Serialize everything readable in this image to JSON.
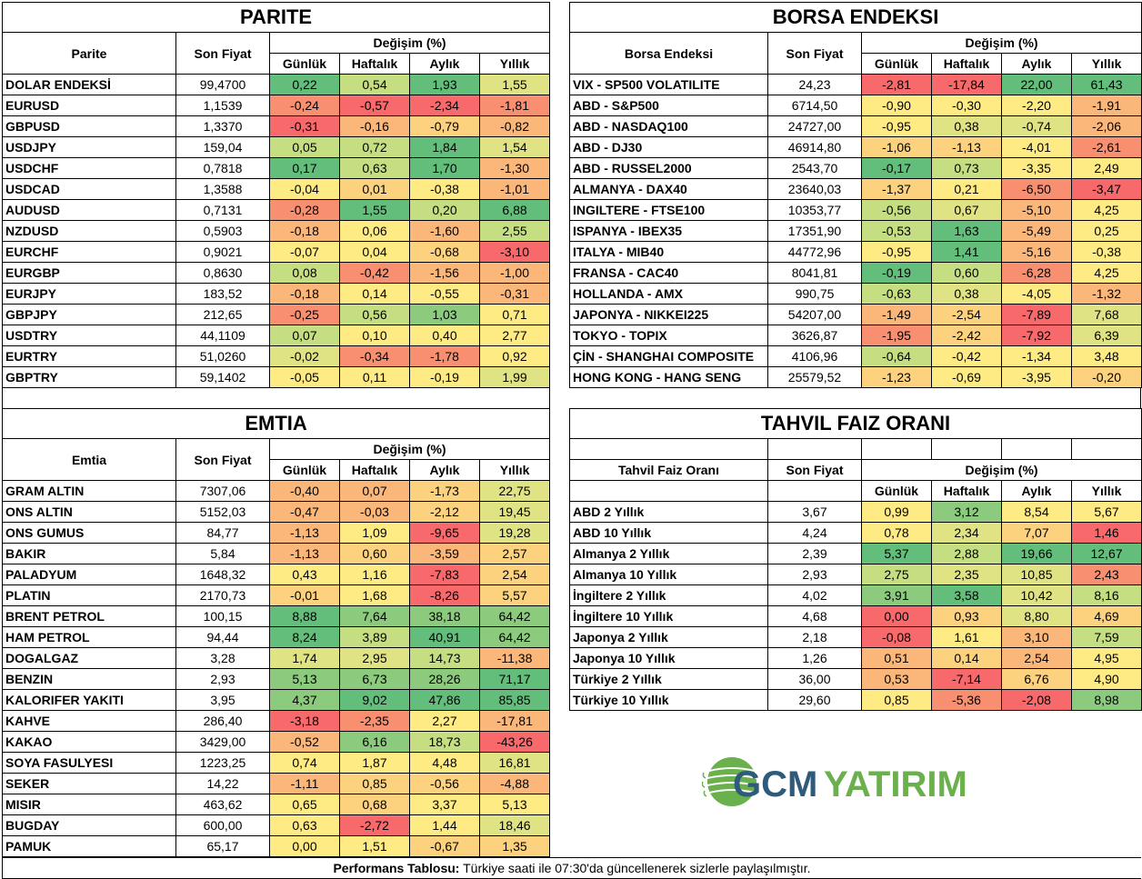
{
  "colors": {
    "green_strong": "#63BE7B",
    "green": "#8CCB7E",
    "green_light": "#C5DE82",
    "yellow_green": "#E0E383",
    "yellow": "#FFEB84",
    "orange_light": "#FCD27F",
    "orange": "#FBB77A",
    "orange_red": "#F98F71",
    "red": "#F8696B",
    "logo_blue": "#2E5B7C",
    "logo_green": "#6AB04C"
  },
  "headers": {
    "son_fiyat": "Son Fiyat",
    "degisim": "Değişim (%)",
    "gunluk": "Günlük",
    "haftalik": "Haftalık",
    "aylik": "Aylık",
    "yillik": "Yıllık"
  },
  "parite": {
    "title": "PARITE",
    "col_label": "Parite",
    "rows": [
      {
        "name": "DOLAR ENDEKSİ",
        "price": "99,4700",
        "vals": [
          "0,22",
          "0,54",
          "1,93",
          "1,55"
        ],
        "c": [
          "#63BE7B",
          "#C5DE82",
          "#63BE7B",
          "#E0E383"
        ]
      },
      {
        "name": "EURUSD",
        "price": "1,1539",
        "vals": [
          "-0,24",
          "-0,57",
          "-2,34",
          "-1,81"
        ],
        "c": [
          "#F98F71",
          "#F8696B",
          "#F8696B",
          "#F98F71"
        ]
      },
      {
        "name": "GBPUSD",
        "price": "1,3370",
        "vals": [
          "-0,31",
          "-0,16",
          "-0,79",
          "-0,82"
        ],
        "c": [
          "#F8696B",
          "#FBB77A",
          "#FCD27F",
          "#FBB77A"
        ]
      },
      {
        "name": "USDJPY",
        "price": "159,04",
        "vals": [
          "0,05",
          "0,72",
          "1,84",
          "1,54"
        ],
        "c": [
          "#C5DE82",
          "#C5DE82",
          "#63BE7B",
          "#E0E383"
        ]
      },
      {
        "name": "USDCHF",
        "price": "0,7818",
        "vals": [
          "0,17",
          "0,63",
          "1,70",
          "-1,30"
        ],
        "c": [
          "#63BE7B",
          "#C5DE82",
          "#63BE7B",
          "#FBB77A"
        ]
      },
      {
        "name": "USDCAD",
        "price": "1,3588",
        "vals": [
          "-0,04",
          "0,01",
          "-0,38",
          "-1,01"
        ],
        "c": [
          "#FFEB84",
          "#FCD27F",
          "#FFEB84",
          "#FBB77A"
        ]
      },
      {
        "name": "AUDUSD",
        "price": "0,7131",
        "vals": [
          "-0,28",
          "1,55",
          "0,20",
          "6,88"
        ],
        "c": [
          "#F98F71",
          "#63BE7B",
          "#C5DE82",
          "#63BE7B"
        ]
      },
      {
        "name": "NZDUSD",
        "price": "0,5903",
        "vals": [
          "-0,18",
          "0,06",
          "-1,60",
          "2,55"
        ],
        "c": [
          "#FBB77A",
          "#FFEB84",
          "#FBB77A",
          "#C5DE82"
        ]
      },
      {
        "name": "EURCHF",
        "price": "0,9021",
        "vals": [
          "-0,07",
          "0,04",
          "-0,68",
          "-3,10"
        ],
        "c": [
          "#FFEB84",
          "#FFEB84",
          "#FCD27F",
          "#F8696B"
        ]
      },
      {
        "name": "EURGBP",
        "price": "0,8630",
        "vals": [
          "0,08",
          "-0,42",
          "-1,56",
          "-1,00"
        ],
        "c": [
          "#C5DE82",
          "#F98F71",
          "#FBB77A",
          "#FBB77A"
        ]
      },
      {
        "name": "EURJPY",
        "price": "183,52",
        "vals": [
          "-0,18",
          "0,14",
          "-0,55",
          "-0,31"
        ],
        "c": [
          "#FBB77A",
          "#FFEB84",
          "#FFEB84",
          "#FBB77A"
        ]
      },
      {
        "name": "GBPJPY",
        "price": "212,65",
        "vals": [
          "-0,25",
          "0,56",
          "1,03",
          "0,71"
        ],
        "c": [
          "#F98F71",
          "#C5DE82",
          "#8CCB7E",
          "#FFEB84"
        ]
      },
      {
        "name": "USDTRY",
        "price": "44,1109",
        "vals": [
          "0,07",
          "0,10",
          "0,40",
          "2,77"
        ],
        "c": [
          "#C5DE82",
          "#FFEB84",
          "#FFEB84",
          "#FFEB84"
        ]
      },
      {
        "name": "EURTRY",
        "price": "51,0260",
        "vals": [
          "-0,02",
          "-0,34",
          "-1,78",
          "0,92"
        ],
        "c": [
          "#E0E383",
          "#F98F71",
          "#F98F71",
          "#FFEB84"
        ]
      },
      {
        "name": "GBPTRY",
        "price": "59,1402",
        "vals": [
          "-0,05",
          "0,11",
          "-0,19",
          "1,99"
        ],
        "c": [
          "#FFEB84",
          "#FFEB84",
          "#FFEB84",
          "#E0E383"
        ]
      }
    ]
  },
  "borsa": {
    "title": "BORSA ENDEKSI",
    "col_label": "Borsa Endeksi",
    "rows": [
      {
        "name": "VIX  - SP500 VOLATILITE",
        "price": "24,23",
        "vals": [
          "-2,81",
          "-17,84",
          "22,00",
          "61,43"
        ],
        "c": [
          "#F8696B",
          "#F8696B",
          "#63BE7B",
          "#63BE7B"
        ]
      },
      {
        "name": "ABD - S&P500",
        "price": "6714,50",
        "vals": [
          "-0,90",
          "-0,30",
          "-2,20",
          "-1,91"
        ],
        "c": [
          "#FFEB84",
          "#FFEB84",
          "#FFEB84",
          "#FBB77A"
        ]
      },
      {
        "name": "ABD - NASDAQ100",
        "price": "24727,00",
        "vals": [
          "-0,95",
          "0,38",
          "-0,74",
          "-2,06"
        ],
        "c": [
          "#FFEB84",
          "#E0E383",
          "#E0E383",
          "#FBB77A"
        ]
      },
      {
        "name": "ABD - DJ30",
        "price": "46914,80",
        "vals": [
          "-1,06",
          "-1,13",
          "-4,01",
          "-2,61"
        ],
        "c": [
          "#FCD27F",
          "#FCD27F",
          "#FFEB84",
          "#F98F71"
        ]
      },
      {
        "name": "ABD - RUSSEL2000",
        "price": "2543,70",
        "vals": [
          "-0,17",
          "0,73",
          "-3,35",
          "2,49"
        ],
        "c": [
          "#63BE7B",
          "#C5DE82",
          "#FFEB84",
          "#FFEB84"
        ]
      },
      {
        "name": "ALMANYA - DAX40",
        "price": "23640,03",
        "vals": [
          "-1,37",
          "0,21",
          "-6,50",
          "-3,47"
        ],
        "c": [
          "#FCD27F",
          "#FFEB84",
          "#F98F71",
          "#F8696B"
        ]
      },
      {
        "name": "INGILTERE - FTSE100",
        "price": "10353,77",
        "vals": [
          "-0,56",
          "0,67",
          "-5,10",
          "4,25"
        ],
        "c": [
          "#C5DE82",
          "#E0E383",
          "#FBB77A",
          "#FFEB84"
        ]
      },
      {
        "name": "ISPANYA - IBEX35",
        "price": "17351,90",
        "vals": [
          "-0,53",
          "1,63",
          "-5,49",
          "0,25"
        ],
        "c": [
          "#C5DE82",
          "#63BE7B",
          "#FBB77A",
          "#FFEB84"
        ]
      },
      {
        "name": "ITALYA - MIB40",
        "price": "44772,96",
        "vals": [
          "-0,95",
          "1,41",
          "-5,16",
          "-0,38"
        ],
        "c": [
          "#FFEB84",
          "#63BE7B",
          "#FBB77A",
          "#FFEB84"
        ]
      },
      {
        "name": "FRANSA - CAC40",
        "price": "8041,81",
        "vals": [
          "-0,19",
          "0,60",
          "-6,28",
          "4,25"
        ],
        "c": [
          "#63BE7B",
          "#C5DE82",
          "#F98F71",
          "#FFEB84"
        ]
      },
      {
        "name": "HOLLANDA - AMX",
        "price": "990,75",
        "vals": [
          "-0,63",
          "0,38",
          "-4,05",
          "-1,32"
        ],
        "c": [
          "#C5DE82",
          "#E0E383",
          "#FFEB84",
          "#FBB77A"
        ]
      },
      {
        "name": "JAPONYA - NIKKEI225",
        "price": "54207,00",
        "vals": [
          "-1,49",
          "-2,54",
          "-7,89",
          "7,68"
        ],
        "c": [
          "#FBB77A",
          "#FCD27F",
          "#F8696B",
          "#E0E383"
        ]
      },
      {
        "name": "TOKYO - TOPIX",
        "price": "3626,87",
        "vals": [
          "-1,95",
          "-2,42",
          "-7,92",
          "6,39"
        ],
        "c": [
          "#F98F71",
          "#FCD27F",
          "#F8696B",
          "#E0E383"
        ]
      },
      {
        "name": "ÇİN - SHANGHAI COMPOSITE",
        "price": "4106,96",
        "vals": [
          "-0,64",
          "-0,42",
          "-1,34",
          "3,48"
        ],
        "c": [
          "#C5DE82",
          "#FFEB84",
          "#FFEB84",
          "#FFEB84"
        ]
      },
      {
        "name": "HONG KONG - HANG SENG",
        "price": "25579,52",
        "vals": [
          "-1,23",
          "-0,69",
          "-3,95",
          "-0,20"
        ],
        "c": [
          "#FCD27F",
          "#FFEB84",
          "#FFEB84",
          "#FCD27F"
        ]
      }
    ]
  },
  "emtia": {
    "title": "EMTIA",
    "col_label": "Emtia",
    "rows": [
      {
        "name": "GRAM ALTIN",
        "price": "7307,06",
        "vals": [
          "-0,40",
          "0,07",
          "-1,73",
          "22,75"
        ],
        "c": [
          "#FBB77A",
          "#FBB77A",
          "#FCD27F",
          "#E0E383"
        ]
      },
      {
        "name": "ONS ALTIN",
        "price": "5152,03",
        "vals": [
          "-0,47",
          "-0,03",
          "-2,12",
          "19,45"
        ],
        "c": [
          "#FBB77A",
          "#FBB77A",
          "#FCD27F",
          "#E0E383"
        ]
      },
      {
        "name": "ONS GUMUS",
        "price": "84,77",
        "vals": [
          "-1,13",
          "1,09",
          "-9,65",
          "19,28"
        ],
        "c": [
          "#FBB77A",
          "#FFEB84",
          "#F8696B",
          "#E0E383"
        ]
      },
      {
        "name": "BAKIR",
        "price": "5,84",
        "vals": [
          "-1,13",
          "0,60",
          "-3,59",
          "2,57"
        ],
        "c": [
          "#FBB77A",
          "#FCD27F",
          "#FBB77A",
          "#FCD27F"
        ]
      },
      {
        "name": "PALADYUM",
        "price": "1648,32",
        "vals": [
          "0,43",
          "1,16",
          "-7,83",
          "2,54"
        ],
        "c": [
          "#FFEB84",
          "#FFEB84",
          "#F8696B",
          "#FCD27F"
        ]
      },
      {
        "name": "PLATIN",
        "price": "2170,73",
        "vals": [
          "-0,01",
          "1,68",
          "-8,26",
          "5,57"
        ],
        "c": [
          "#FCD27F",
          "#FFEB84",
          "#F8696B",
          "#FCD27F"
        ]
      },
      {
        "name": "BRENT PETROL",
        "price": "100,15",
        "vals": [
          "8,88",
          "7,64",
          "38,18",
          "64,42"
        ],
        "c": [
          "#63BE7B",
          "#8CCB7E",
          "#8CCB7E",
          "#8CCB7E"
        ]
      },
      {
        "name": "HAM PETROL",
        "price": "94,44",
        "vals": [
          "8,24",
          "3,89",
          "40,91",
          "64,42"
        ],
        "c": [
          "#63BE7B",
          "#C5DE82",
          "#63BE7B",
          "#8CCB7E"
        ]
      },
      {
        "name": "DOGALGAZ",
        "price": "3,28",
        "vals": [
          "1,74",
          "2,95",
          "14,73",
          "-11,38"
        ],
        "c": [
          "#E0E383",
          "#E0E383",
          "#C5DE82",
          "#FBB77A"
        ]
      },
      {
        "name": "BENZIN",
        "price": "2,93",
        "vals": [
          "5,13",
          "6,73",
          "28,26",
          "71,17"
        ],
        "c": [
          "#8CCB7E",
          "#8CCB7E",
          "#8CCB7E",
          "#63BE7B"
        ]
      },
      {
        "name": "KALORIFER YAKITI",
        "price": "3,95",
        "vals": [
          "4,37",
          "9,02",
          "47,86",
          "85,85"
        ],
        "c": [
          "#8CCB7E",
          "#63BE7B",
          "#63BE7B",
          "#63BE7B"
        ]
      },
      {
        "name": "KAHVE",
        "price": "286,40",
        "vals": [
          "-3,18",
          "-2,35",
          "2,27",
          "-17,81"
        ],
        "c": [
          "#F8696B",
          "#F98F71",
          "#FFEB84",
          "#FBB77A"
        ]
      },
      {
        "name": "KAKAO",
        "price": "3429,00",
        "vals": [
          "-0,52",
          "6,16",
          "18,73",
          "-43,26"
        ],
        "c": [
          "#FBB77A",
          "#8CCB7E",
          "#C5DE82",
          "#F8696B"
        ]
      },
      {
        "name": "SOYA FASULYESI",
        "price": "1223,25",
        "vals": [
          "0,74",
          "1,87",
          "4,48",
          "16,81"
        ],
        "c": [
          "#FFEB84",
          "#FFEB84",
          "#FFEB84",
          "#E0E383"
        ]
      },
      {
        "name": "SEKER",
        "price": "14,22",
        "vals": [
          "-1,11",
          "0,85",
          "-0,56",
          "-4,88"
        ],
        "c": [
          "#FBB77A",
          "#FCD27F",
          "#FCD27F",
          "#FBB77A"
        ]
      },
      {
        "name": "MISIR",
        "price": "463,62",
        "vals": [
          "0,65",
          "0,68",
          "3,37",
          "5,13"
        ],
        "c": [
          "#FFEB84",
          "#FCD27F",
          "#FFEB84",
          "#FFEB84"
        ]
      },
      {
        "name": "BUGDAY",
        "price": "600,00",
        "vals": [
          "0,63",
          "-2,72",
          "1,44",
          "18,46"
        ],
        "c": [
          "#FFEB84",
          "#F8696B",
          "#FFEB84",
          "#E0E383"
        ]
      },
      {
        "name": "PAMUK",
        "price": "65,17",
        "vals": [
          "0,00",
          "1,51",
          "-0,67",
          "1,35"
        ],
        "c": [
          "#FFEB84",
          "#FFEB84",
          "#FCD27F",
          "#FCD27F"
        ]
      }
    ]
  },
  "tahvil": {
    "title": "TAHVIL FAIZ ORANI",
    "col_label": "Tahvil Faiz Oranı",
    "rows": [
      {
        "name": "ABD 2 Yıllık",
        "price": "3,67",
        "vals": [
          "0,99",
          "3,12",
          "8,54",
          "5,67"
        ],
        "c": [
          "#FFEB84",
          "#8CCB7E",
          "#FFEB84",
          "#FFEB84"
        ]
      },
      {
        "name": "ABD 10 Yıllık",
        "price": "4,24",
        "vals": [
          "0,78",
          "2,34",
          "7,07",
          "1,46"
        ],
        "c": [
          "#FFEB84",
          "#E0E383",
          "#FCD27F",
          "#F8696B"
        ]
      },
      {
        "name": "Almanya 2 Yıllık",
        "price": "2,39",
        "vals": [
          "5,37",
          "2,88",
          "19,66",
          "12,67"
        ],
        "c": [
          "#63BE7B",
          "#C5DE82",
          "#63BE7B",
          "#63BE7B"
        ]
      },
      {
        "name": "Almanya 10 Yıllık",
        "price": "2,93",
        "vals": [
          "2,75",
          "2,35",
          "10,85",
          "2,43"
        ],
        "c": [
          "#C5DE82",
          "#E0E383",
          "#E0E383",
          "#F98F71"
        ]
      },
      {
        "name": "İngiltere 2 Yıllık",
        "price": "4,02",
        "vals": [
          "3,91",
          "3,58",
          "10,42",
          "8,16"
        ],
        "c": [
          "#8CCB7E",
          "#63BE7B",
          "#E0E383",
          "#C5DE82"
        ]
      },
      {
        "name": "İngiltere 10 Yıllık",
        "price": "4,68",
        "vals": [
          "0,00",
          "0,93",
          "8,80",
          "4,69"
        ],
        "c": [
          "#F8696B",
          "#FCD27F",
          "#E0E383",
          "#FCD27F"
        ]
      },
      {
        "name": "Japonya 2 Yıllık",
        "price": "2,18",
        "vals": [
          "-0,08",
          "1,61",
          "3,10",
          "7,59"
        ],
        "c": [
          "#F8696B",
          "#FFEB84",
          "#FBB77A",
          "#C5DE82"
        ]
      },
      {
        "name": "Japonya 10 Yıllık",
        "price": "1,26",
        "vals": [
          "0,51",
          "0,14",
          "2,54",
          "4,95"
        ],
        "c": [
          "#FBB77A",
          "#FCD27F",
          "#FBB77A",
          "#FFEB84"
        ]
      },
      {
        "name": "Türkiye 2 Yıllık",
        "price": "36,00",
        "vals": [
          "0,53",
          "-7,14",
          "6,76",
          "4,90"
        ],
        "c": [
          "#FBB77A",
          "#F8696B",
          "#FCD27F",
          "#FFEB84"
        ]
      },
      {
        "name": "Türkiye 10 Yıllık",
        "price": "29,60",
        "vals": [
          "0,85",
          "-5,36",
          "-2,08",
          "8,98"
        ],
        "c": [
          "#FFEB84",
          "#F98F71",
          "#F8696B",
          "#8CCB7E"
        ]
      }
    ]
  },
  "logo": {
    "part1": "GCM",
    "part2": "YATIRIM"
  },
  "footer": {
    "bold": "Performans Tablosu:",
    "text": " Türkiye saati ile 07:30'da güncellenerek sizlerle paylaşılmıştır."
  }
}
